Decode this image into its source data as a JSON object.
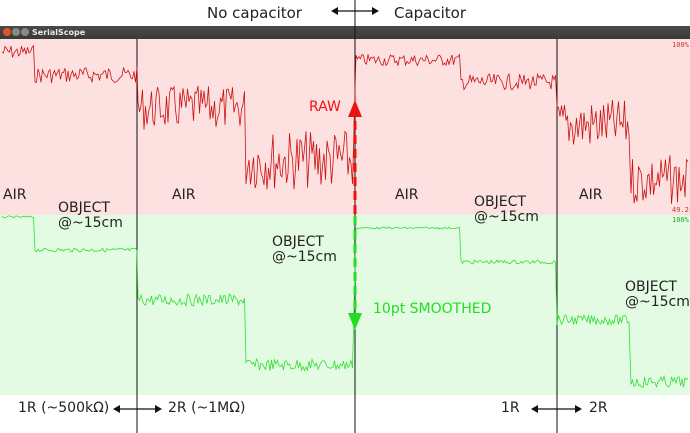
{
  "window": {
    "title": "SerialScope",
    "colors": {
      "close": "#e0552d",
      "min": "#8a8a85",
      "max": "#8a8a85"
    }
  },
  "headings": {
    "left": "No capacitor",
    "right": "Capacitor"
  },
  "annotations": {
    "raw": "RAW",
    "smoothed": "10pt SMOOTHED",
    "air_1": "AIR",
    "air_2": "AIR",
    "air_3": "AIR",
    "air_4": "AIR",
    "object_1_line1": "OBJECT",
    "object_1_line2": "@~15cm",
    "object_2_line1": "OBJECT",
    "object_2_line2": "@~15cm",
    "object_3_line1": "OBJECT",
    "object_3_line2": "@~15cm",
    "object_4_line1": "OBJECT",
    "object_4_line2": "@~15cm"
  },
  "bottom_labels": {
    "r1_left": "1R (~500kΩ)",
    "r2_left": "2R (~1MΩ)",
    "r1_right": "1R",
    "r2_right": "2R"
  },
  "chart_data": {
    "type": "line",
    "panels": [
      {
        "name": "RAW",
        "background": "#fde0e0",
        "line_color": "#cc1111",
        "corner_labels": [
          "100%",
          "49.2"
        ]
      },
      {
        "name": "10pt SMOOTHED",
        "background": "#e3fbe3",
        "line_color": "#33dd33",
        "corner_labels": [
          "100%"
        ]
      }
    ],
    "colors": {
      "raw_arrow": "#ee1111",
      "smooth_arrow": "#22dd22"
    }
  }
}
